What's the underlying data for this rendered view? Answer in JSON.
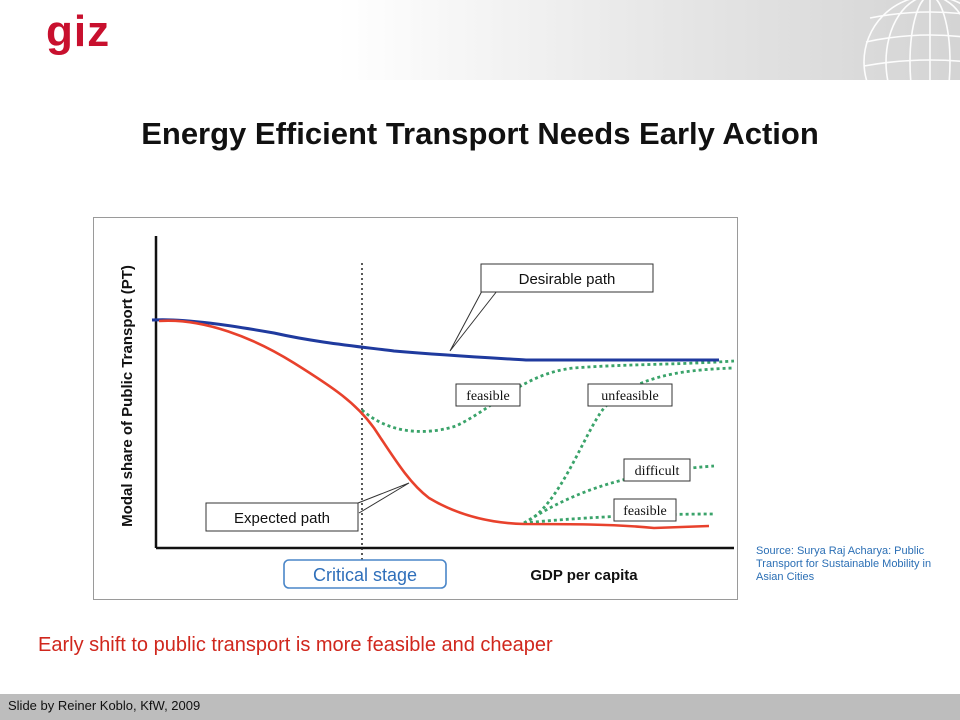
{
  "header": {
    "logo_text": "giz"
  },
  "slide": {
    "title": "Energy Efficient Transport Needs Early Action",
    "caption": "Early shift to public transport is more feasible and cheaper",
    "source": "Source: Surya Raj Acharya: Public Transport for Sustainable Mobility in Asian Cities",
    "footer": "Slide by Reiner Koblo, KfW, 2009"
  },
  "diagram": {
    "y_axis_label": "Modal share of Public Transport (PT)",
    "x_axis_label": "GDP per capita",
    "labels": {
      "desirable_path": "Desirable path",
      "expected_path": "Expected path",
      "critical_stage": "Critical stage",
      "feasible_early": "feasible",
      "unfeasible": "unfeasible",
      "difficult": "difficult",
      "feasible_late": "feasible"
    },
    "colors": {
      "desirable_path": "#1f3a9e",
      "expected_path": "#e8412c",
      "alternative_paths": "#3aa36a",
      "critical_stage_border": "#4a86c8"
    }
  }
}
